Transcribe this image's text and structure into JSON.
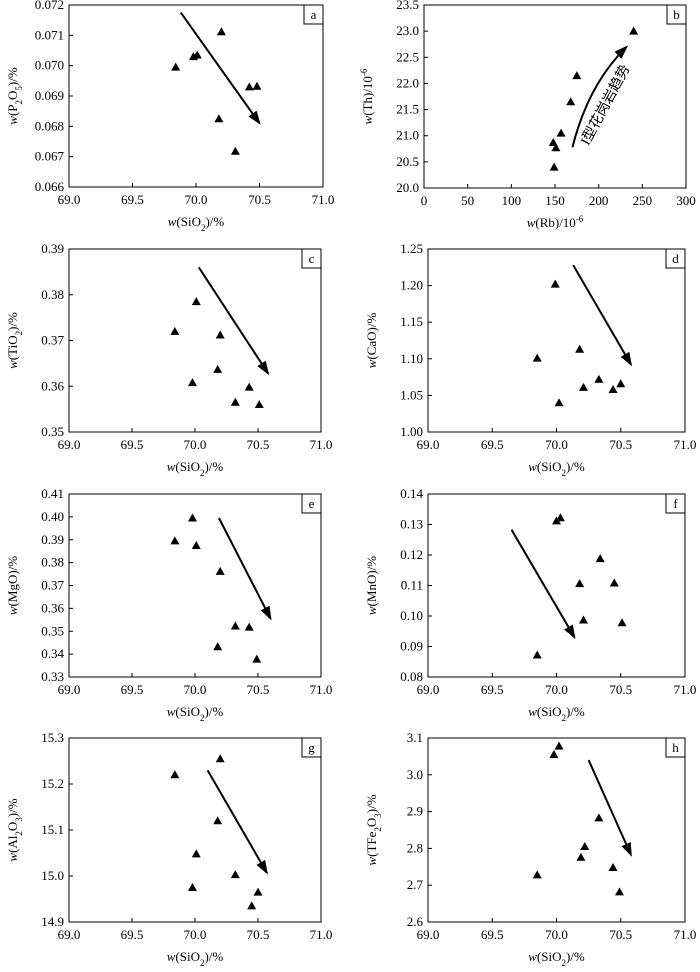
{
  "chart_data": [
    {
      "panel": "a",
      "type": "scatter",
      "x_label": {
        "italic": "w",
        "base": "(SiO",
        "sub": "2",
        "rest": ")/%"
      },
      "y_label": {
        "italic": "w",
        "base": "(P",
        "sub": "2",
        "mid": "O",
        "sub2": "5",
        "rest": ")/%"
      },
      "xlim": [
        69.0,
        71.0
      ],
      "ylim": [
        0.066,
        0.072
      ],
      "xticks": [
        "69.0",
        "69.5",
        "70.0",
        "70.5",
        "71.0"
      ],
      "yticks": [
        "0.066",
        "0.067",
        "0.068",
        "0.069",
        "0.070",
        "0.071",
        "0.072"
      ],
      "points": [
        [
          69.84,
          0.06995
        ],
        [
          69.98,
          0.0703
        ],
        [
          70.01,
          0.07035
        ],
        [
          70.2,
          0.07112
        ],
        [
          70.18,
          0.06825
        ],
        [
          70.42,
          0.0693
        ],
        [
          70.48,
          0.06932
        ],
        [
          70.31,
          0.06718
        ]
      ],
      "arrow": {
        "from": [
          69.88,
          0.07175
        ],
        "to": [
          70.5,
          0.0681
        ]
      }
    },
    {
      "panel": "b",
      "type": "scatter",
      "x_label": {
        "italic": "w",
        "base": "(Rb)/10",
        "sup": "-6"
      },
      "y_label": {
        "italic": "w",
        "base": "(Th)/10",
        "sup": "-6"
      },
      "xlim": [
        0,
        300
      ],
      "ylim": [
        20.0,
        23.5
      ],
      "xticks": [
        "0",
        "50",
        "100",
        "150",
        "200",
        "250",
        "300"
      ],
      "yticks": [
        "20.0",
        "20.5",
        "21.0",
        "21.5",
        "22.0",
        "22.5",
        "23.0",
        "23.5"
      ],
      "points": [
        [
          149,
          20.4
        ],
        [
          148,
          20.87
        ],
        [
          151,
          20.77
        ],
        [
          157,
          21.05
        ],
        [
          168,
          21.65
        ],
        [
          175,
          22.15
        ],
        [
          240,
          23.0
        ]
      ],
      "curve": {
        "from": [
          170,
          20.78
        ],
        "ctrl": [
          188,
          21.98
        ],
        "to": [
          232,
          22.7
        ]
      },
      "trend_text": "I型花岗岩趋势"
    },
    {
      "panel": "c",
      "type": "scatter",
      "x_label": {
        "italic": "w",
        "base": "(SiO",
        "sub": "2",
        "rest": ")/%"
      },
      "y_label": {
        "italic": "w",
        "base": "(TiO",
        "sub": "2",
        "rest": ")/%"
      },
      "xlim": [
        69.0,
        71.0
      ],
      "ylim": [
        0.35,
        0.39
      ],
      "xticks": [
        "69.0",
        "69.5",
        "70.0",
        "70.5",
        "71.0"
      ],
      "yticks": [
        "0.35",
        "0.36",
        "0.37",
        "0.38",
        "0.39"
      ],
      "points": [
        [
          69.84,
          0.372
        ],
        [
          69.98,
          0.3608
        ],
        [
          70.01,
          0.3785
        ],
        [
          70.2,
          0.3712
        ],
        [
          70.18,
          0.3637
        ],
        [
          70.32,
          0.3565
        ],
        [
          70.43,
          0.3598
        ],
        [
          70.51,
          0.356
        ]
      ],
      "arrow": {
        "from": [
          70.03,
          0.386
        ],
        "to": [
          70.58,
          0.3628
        ]
      }
    },
    {
      "panel": "d",
      "type": "scatter",
      "x_label": {
        "italic": "w",
        "base": "(SiO",
        "sub": "2",
        "rest": ")/%"
      },
      "y_label": {
        "italic": "w",
        "base": "(CaO)/%"
      },
      "xlim": [
        69.0,
        71.0
      ],
      "ylim": [
        1.0,
        1.25
      ],
      "xticks": [
        "69.0",
        "69.5",
        "70.0",
        "70.5",
        "71.0"
      ],
      "yticks": [
        "1.00",
        "1.05",
        "1.10",
        "1.15",
        "1.20",
        "1.25"
      ],
      "points": [
        [
          69.85,
          1.101
        ],
        [
          69.99,
          1.202
        ],
        [
          70.02,
          1.04
        ],
        [
          70.18,
          1.113
        ],
        [
          70.21,
          1.061
        ],
        [
          70.33,
          1.072
        ],
        [
          70.44,
          1.058
        ],
        [
          70.5,
          1.066
        ]
      ],
      "arrow": {
        "from": [
          70.13,
          1.228
        ],
        "to": [
          70.58,
          1.092
        ]
      }
    },
    {
      "panel": "e",
      "type": "scatter",
      "x_label": {
        "italic": "w",
        "base": "(SiO",
        "sub": "2",
        "rest": ")/%"
      },
      "y_label": {
        "italic": "w",
        "base": "(MgO)/%"
      },
      "xlim": [
        69.0,
        71.0
      ],
      "ylim": [
        0.33,
        0.41
      ],
      "xticks": [
        "69.0",
        "69.5",
        "70.0",
        "70.5",
        "71.0"
      ],
      "yticks": [
        "0.33",
        "0.34",
        "0.35",
        "0.36",
        "0.37",
        "0.38",
        "0.39",
        "0.40",
        "0.41"
      ],
      "points": [
        [
          69.84,
          0.3895
        ],
        [
          69.98,
          0.3995
        ],
        [
          70.01,
          0.3875
        ],
        [
          70.2,
          0.3762
        ],
        [
          70.18,
          0.3432
        ],
        [
          70.32,
          0.3523
        ],
        [
          70.43,
          0.3518
        ],
        [
          70.49,
          0.3378
        ]
      ],
      "arrow": {
        "from": [
          70.19,
          0.3995
        ],
        "to": [
          70.6,
          0.3555
        ]
      }
    },
    {
      "panel": "f",
      "type": "scatter",
      "x_label": {
        "italic": "w",
        "base": "(SiO",
        "sub": "2",
        "rest": ")/%"
      },
      "y_label": {
        "italic": "w",
        "base": "(MnO)/%"
      },
      "xlim": [
        69.0,
        71.0
      ],
      "ylim": [
        0.08,
        0.14
      ],
      "xticks": [
        "69.0",
        "69.5",
        "70.0",
        "70.5",
        "71.0"
      ],
      "yticks": [
        "0.08",
        "0.09",
        "0.10",
        "0.11",
        "0.12",
        "0.13",
        "0.14"
      ],
      "points": [
        [
          69.85,
          0.0872
        ],
        [
          70.0,
          0.1312
        ],
        [
          70.03,
          0.1322
        ],
        [
          70.18,
          0.1106
        ],
        [
          70.21,
          0.0987
        ],
        [
          70.34,
          0.1188
        ],
        [
          70.45,
          0.1108
        ],
        [
          70.51,
          0.0978
        ]
      ],
      "arrow": {
        "from": [
          69.65,
          0.1283
        ],
        "to": [
          70.14,
          0.093
        ]
      }
    },
    {
      "panel": "g",
      "type": "scatter",
      "x_label": {
        "italic": "w",
        "base": "(SiO",
        "sub": "2",
        "rest": ")/%"
      },
      "y_label": {
        "italic": "w",
        "base": "(Al",
        "sub": "2",
        "mid": "O",
        "sub2": "3",
        "rest": ")/%"
      },
      "xlim": [
        69.0,
        71.0
      ],
      "ylim": [
        14.9,
        15.3
      ],
      "xticks": [
        "69.0",
        "69.5",
        "70.0",
        "70.5",
        "71.0"
      ],
      "yticks": [
        "14.9",
        "15.0",
        "15.1",
        "15.2",
        "15.3"
      ],
      "points": [
        [
          69.84,
          15.22
        ],
        [
          69.98,
          14.975
        ],
        [
          70.01,
          15.048
        ],
        [
          70.18,
          15.12
        ],
        [
          70.2,
          15.255
        ],
        [
          70.32,
          15.003
        ],
        [
          70.45,
          14.935
        ],
        [
          70.5,
          14.965
        ]
      ],
      "arrow": {
        "from": [
          70.1,
          15.23
        ],
        "to": [
          70.57,
          15.007
        ]
      }
    },
    {
      "panel": "h",
      "type": "scatter",
      "x_label": {
        "italic": "w",
        "base": "(SiO",
        "sub": "2",
        "rest": ")/%"
      },
      "y_label": {
        "italic": "w",
        "base": "(TFe",
        "sub": "2",
        "mid": "O",
        "sub2": "3",
        "rest": ")/%"
      },
      "xlim": [
        69.0,
        71.0
      ],
      "ylim": [
        2.6,
        3.1
      ],
      "xticks": [
        "69.0",
        "69.5",
        "70.0",
        "70.5",
        "71.0"
      ],
      "yticks": [
        "2.6",
        "2.7",
        "2.8",
        "2.9",
        "3.0",
        "3.1"
      ],
      "points": [
        [
          69.85,
          2.728
        ],
        [
          69.98,
          3.055
        ],
        [
          70.02,
          3.078
        ],
        [
          70.19,
          2.776
        ],
        [
          70.22,
          2.805
        ],
        [
          70.33,
          2.883
        ],
        [
          70.44,
          2.748
        ],
        [
          70.49,
          2.682
        ]
      ],
      "arrow": {
        "from": [
          70.25,
          3.04
        ],
        "to": [
          70.58,
          2.782
        ]
      }
    }
  ]
}
